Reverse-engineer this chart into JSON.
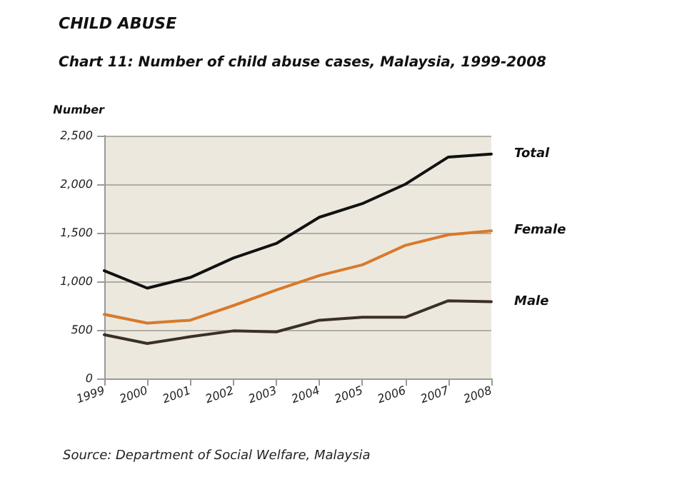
{
  "chart_data": {
    "type": "line",
    "title": "CHILD ABUSE",
    "subtitle": "Chart 11: Number of child abuse cases, Malaysia, 1999-2008",
    "ylabel": "Number",
    "categories": [
      "1999",
      "2000",
      "2001",
      "2002",
      "2003",
      "2004",
      "2005",
      "2006",
      "2007",
      "2008"
    ],
    "series": [
      {
        "name": "Total",
        "color": "#111111",
        "values": [
          1110,
          930,
          1040,
          1240,
          1390,
          1660,
          1800,
          2000,
          2280,
          2310
        ]
      },
      {
        "name": "Female",
        "color": "#d9792b",
        "values": [
          660,
          570,
          600,
          750,
          910,
          1060,
          1170,
          1370,
          1480,
          1520
        ]
      },
      {
        "name": "Male",
        "color": "#3b2f26",
        "values": [
          450,
          360,
          430,
          490,
          480,
          600,
          630,
          630,
          800,
          790
        ]
      }
    ],
    "ylim": [
      0,
      2500
    ],
    "yticks": [
      0,
      500,
      {
        "value": 1000,
        "label": "1,000"
      },
      {
        "value": 1500,
        "label": "1,500"
      },
      {
        "value": 2000,
        "label": "2,000"
      },
      {
        "value": 2500,
        "label": "2,500"
      }
    ],
    "grid": "y",
    "legend": false,
    "marker": "none",
    "line_style": "solid",
    "annotations": [
      "Source: Department of Social Welfare, Malaysia"
    ]
  }
}
